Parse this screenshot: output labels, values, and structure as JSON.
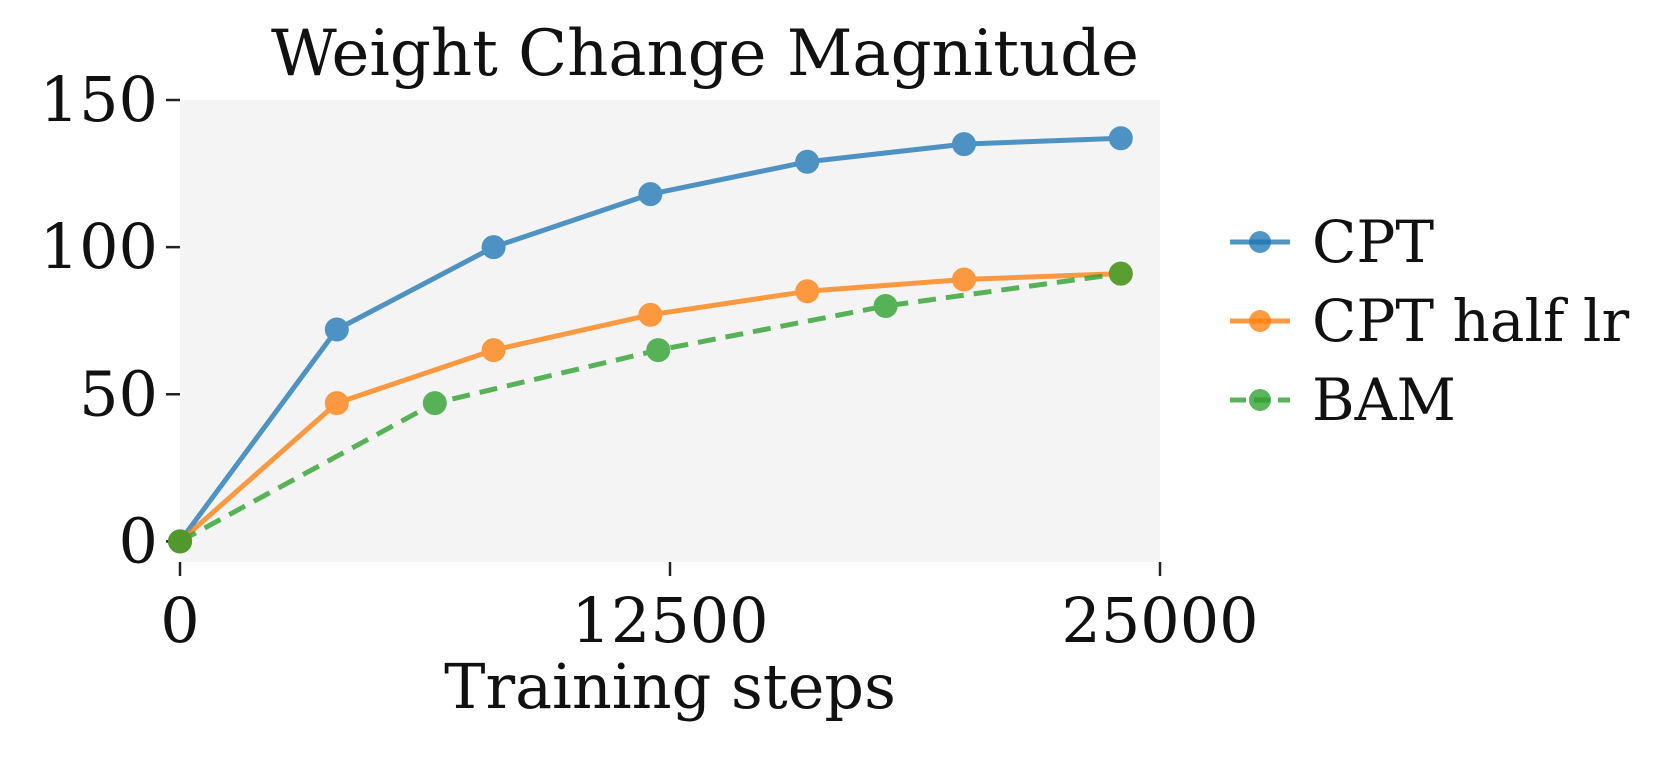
{
  "chart_data": {
    "type": "line",
    "title": "Weight Change Magnitude",
    "xlabel": "Training steps",
    "ylabel": "",
    "xlim": [
      0,
      25000
    ],
    "ylim": [
      -7,
      150
    ],
    "xticks": [
      0,
      12500,
      25000
    ],
    "yticks": [
      0,
      50,
      100,
      150
    ],
    "grid": false,
    "legend_position": "right",
    "background": "#f4f4f4",
    "series": [
      {
        "name": "CPT",
        "color": "#1f77b4",
        "dash": "solid",
        "x": [
          0,
          4000,
          8000,
          12000,
          16000,
          20000,
          24000
        ],
        "y": [
          0,
          72,
          100,
          118,
          129,
          135,
          137
        ]
      },
      {
        "name": "CPT half lr",
        "color": "#ff7f0e",
        "dash": "solid",
        "x": [
          0,
          4000,
          8000,
          12000,
          16000,
          20000,
          24000
        ],
        "y": [
          0,
          47,
          65,
          77,
          85,
          89,
          91
        ]
      },
      {
        "name": "BAM",
        "color": "#2ca02c",
        "dash": "dashed",
        "x": [
          0,
          6500,
          12200,
          18000,
          24000
        ],
        "y": [
          0,
          47,
          65,
          80,
          91
        ]
      }
    ]
  }
}
